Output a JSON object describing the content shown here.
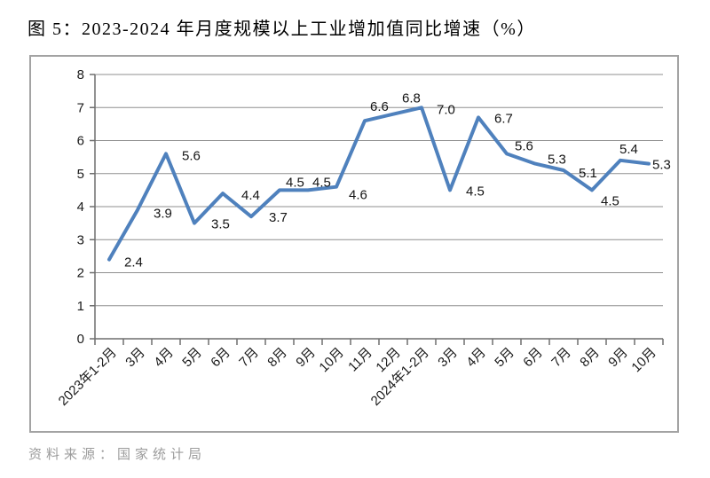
{
  "page": {
    "title": "图 5：2023-2024 年月度规模以上工业增加值同比增速（%）",
    "source_note": "资料来源：国家统计局"
  },
  "colors": {
    "line": "#4F81BD",
    "grid": "#8f8f8f",
    "axis": "#6f6f6f",
    "frame_border": "#a3a3a3",
    "data_label_text": "#141414",
    "tick_label_text": "#1a1a1a",
    "source_text": "#9c9c9c"
  },
  "chart_data": {
    "type": "line",
    "title": "图 5：2023-2024 年月度规模以上工业增加值同比增速（%）",
    "categories": [
      "2023年1-2月",
      "3月",
      "4月",
      "5月",
      "6月",
      "7月",
      "8月",
      "9月",
      "10月",
      "11月",
      "12月",
      "2024年1-2月",
      "3月",
      "4月",
      "5月",
      "6月",
      "7月",
      "8月",
      "9月",
      "10月"
    ],
    "values": [
      2.4,
      3.9,
      5.6,
      3.5,
      4.4,
      3.7,
      4.5,
      4.5,
      4.6,
      6.6,
      6.8,
      7.0,
      4.5,
      6.7,
      5.6,
      5.3,
      5.1,
      4.5,
      5.4,
      5.3
    ],
    "xlabel": "",
    "ylabel": "",
    "ylim": [
      0,
      8
    ],
    "yticks": [
      0,
      1,
      2,
      3,
      4,
      5,
      6,
      7,
      8
    ],
    "grid": "horizontal",
    "legend": "none",
    "data_labels_shown": true,
    "value_decimals": 1
  }
}
